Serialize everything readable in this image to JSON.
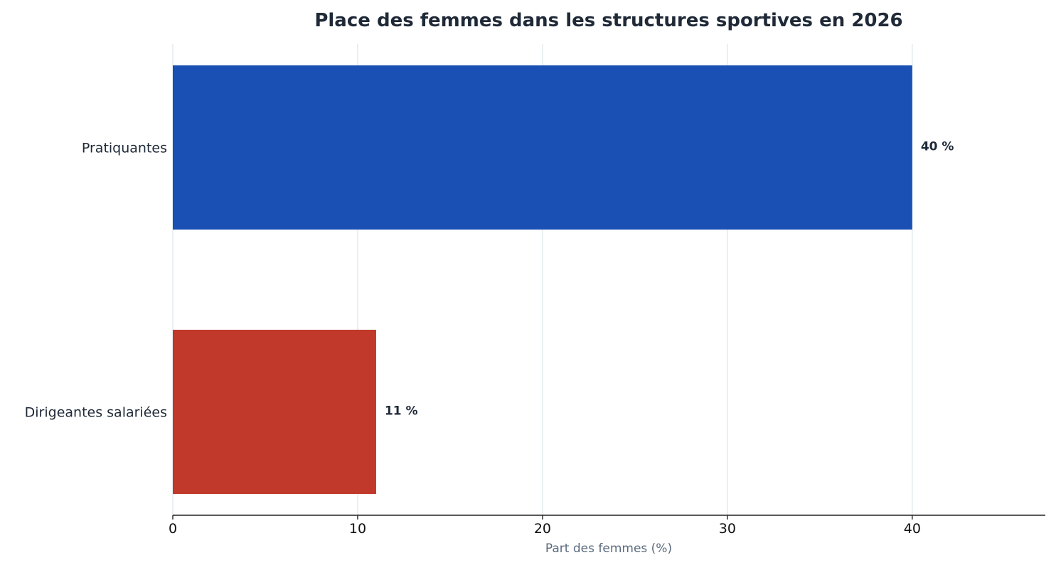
{
  "chart_data": {
    "type": "bar",
    "orientation": "horizontal",
    "title": "Place des femmes dans les structures sportives en 2026",
    "xlabel": "Part des femmes (%)",
    "ylabel": "",
    "categories": [
      "Pratiquantes",
      "Dirigeantes salariées"
    ],
    "values": [
      40,
      11
    ],
    "value_labels": [
      "40 %",
      "11 %"
    ],
    "colors": [
      "#1a4fb4",
      "#c0392b"
    ],
    "xlim": [
      0,
      47.2
    ],
    "xticks": [
      0,
      10,
      20,
      30,
      40
    ],
    "xtick_labels": [
      "0",
      "10",
      "20",
      "30",
      "40"
    ],
    "grid": "vertical",
    "legend": "none"
  }
}
